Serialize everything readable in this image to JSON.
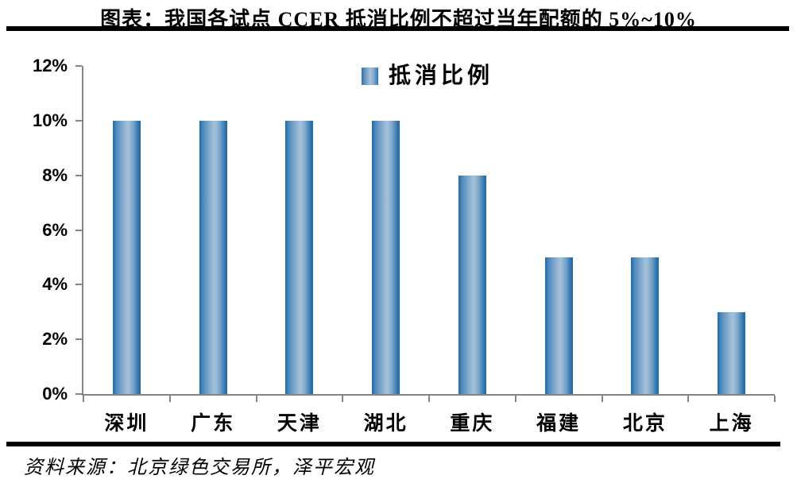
{
  "title": "图表：我国各试点 CCER 抵消比例不超过当年配额的 5%~10%",
  "source": "资料来源：北京绿色交易所，泽平宏观",
  "legend": {
    "label": "抵消比例"
  },
  "colors": {
    "bar_edge": "#1e69a9",
    "bar_center": "#a6c1d9",
    "axis": "#848484",
    "rule": "#000000",
    "text": "#000000",
    "background": "#ffffff"
  },
  "chart_data": {
    "type": "bar",
    "title": "图表：我国各试点 CCER 抵消比例不超过当年配额的 5%~10%",
    "series_name": "抵消比例",
    "categories": [
      "深圳",
      "广东",
      "天津",
      "湖北",
      "重庆",
      "福建",
      "北京",
      "上海"
    ],
    "values": [
      10,
      10,
      10,
      10,
      8,
      5,
      5,
      3
    ],
    "unit": "%",
    "xlabel": "",
    "ylabel": "",
    "ylim": [
      0,
      12
    ],
    "ytick_step": 2,
    "yticks": [
      "0%",
      "2%",
      "4%",
      "6%",
      "8%",
      "10%",
      "12%"
    ],
    "grid": false,
    "legend_position": "top-center",
    "bar_style": "horizontal-gradient-cylinder"
  }
}
